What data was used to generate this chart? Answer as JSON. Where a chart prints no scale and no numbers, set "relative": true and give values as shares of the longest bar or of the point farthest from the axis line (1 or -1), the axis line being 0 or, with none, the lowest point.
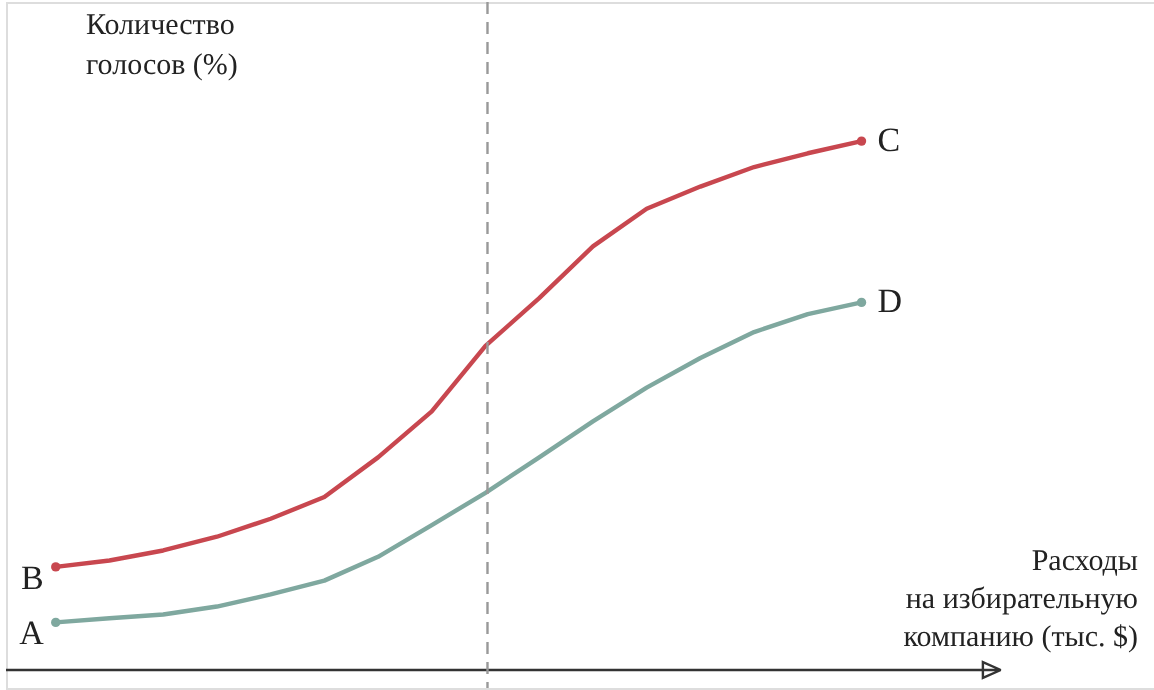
{
  "chart_data": {
    "type": "line",
    "relative": true,
    "tick_labels": false,
    "grid": false,
    "line_style": "solid",
    "xlabel": "Расходы\nна избирательную\nкомпанию (тыс. $)",
    "ylabel": "Количество\nголосов (%)",
    "categories": [
      null,
      null,
      null,
      null,
      null,
      null,
      null,
      null,
      null,
      null,
      null,
      null,
      null,
      null,
      null,
      null
    ],
    "series": [
      {
        "color": "#c8474f",
        "values": [
          0.195,
          0.207,
          0.226,
          0.252,
          0.286,
          0.327,
          0.402,
          0.489,
          0.613,
          0.703,
          0.801,
          0.872,
          0.914,
          0.951,
          0.977,
          1
        ]
      },
      {
        "color": "#7fa89f",
        "values": [
          0.09,
          0.098,
          0.105,
          0.12,
          0.143,
          0.169,
          0.214,
          0.274,
          0.335,
          0.402,
          0.47,
          0.534,
          0.59,
          0.639,
          0.673,
          0.695
        ]
      }
    ],
    "annotations": [
      "A",
      "B",
      "C",
      "D"
    ]
  }
}
